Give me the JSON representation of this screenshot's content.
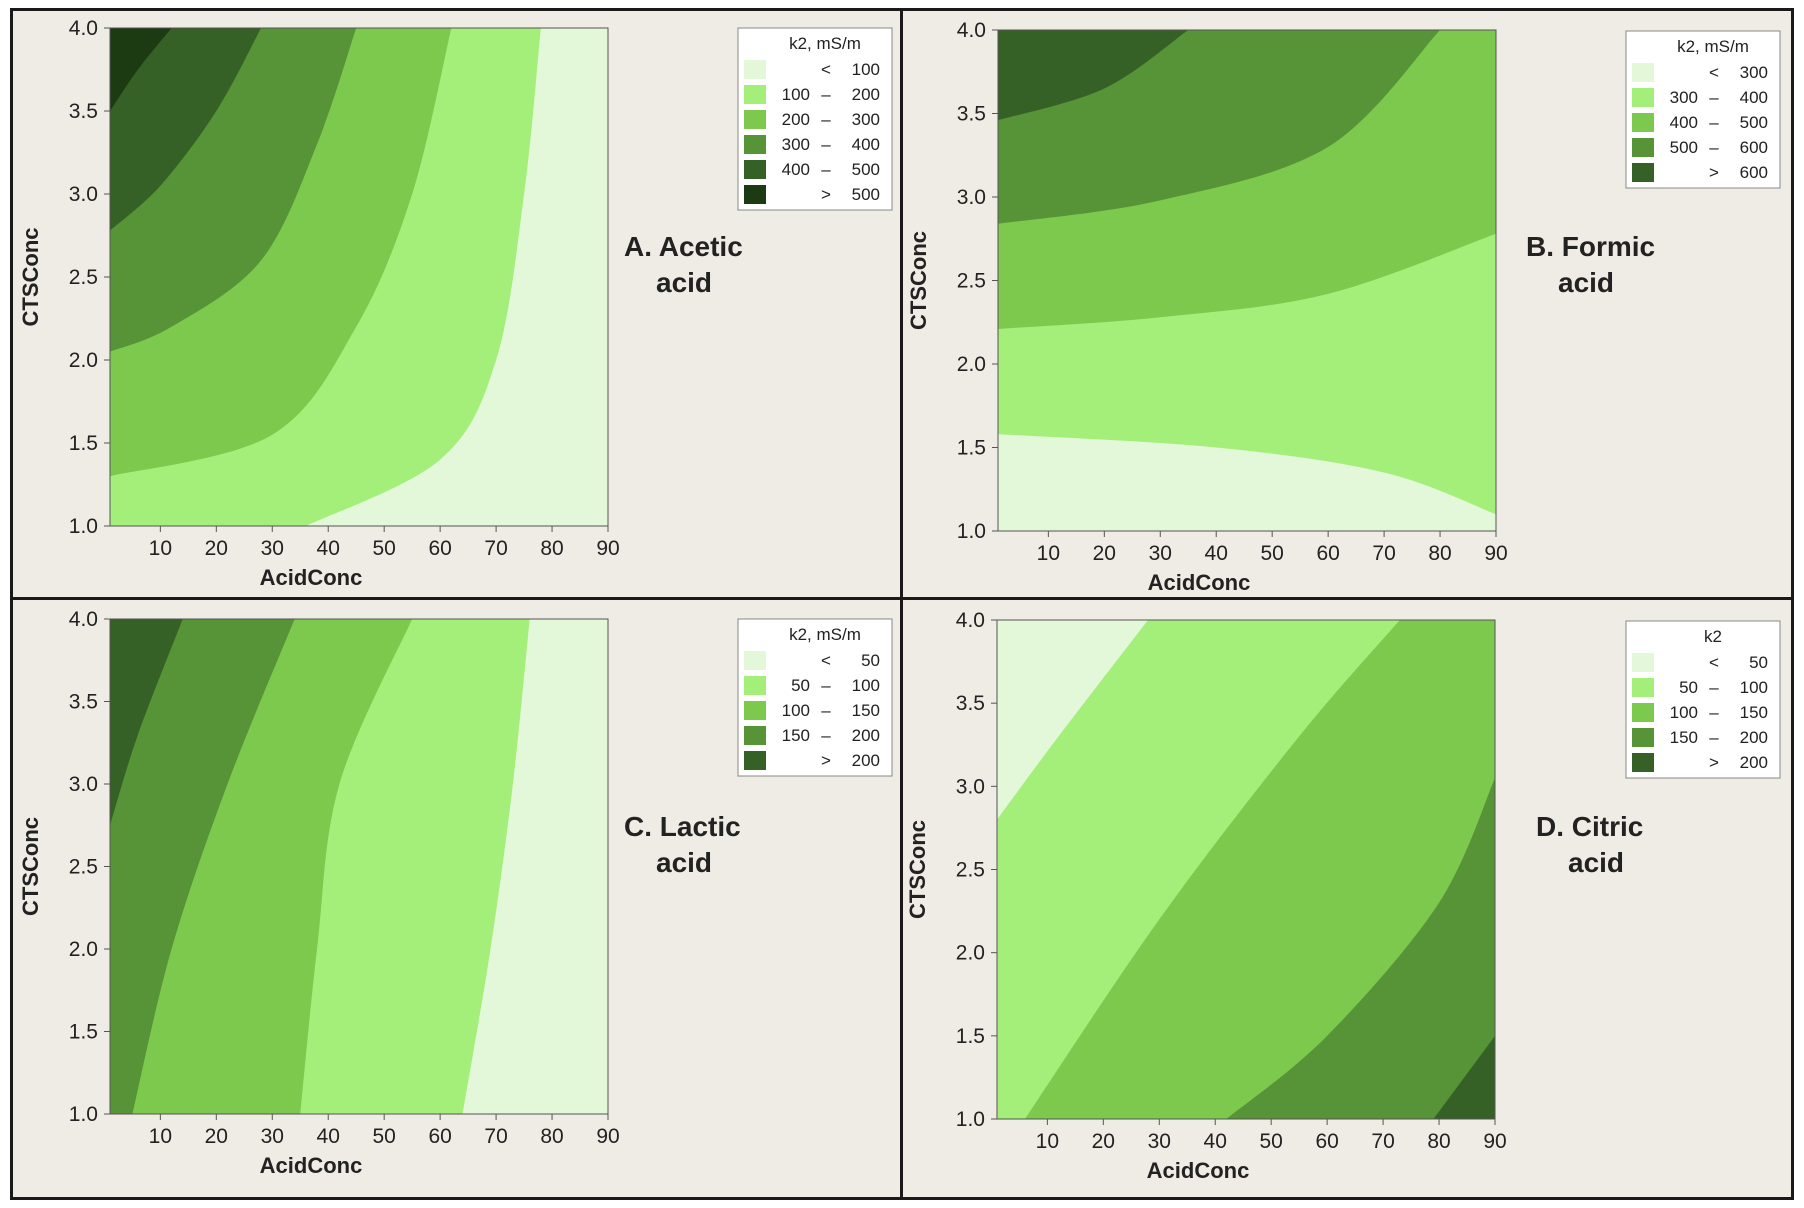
{
  "figure": {
    "description_colors": {
      "frame": "#1a1a1a",
      "background": "#efebe5"
    }
  },
  "chart_data": [
    {
      "type": "contour",
      "title": [
        "A. Acetic",
        "acid"
      ],
      "xlabel": "AcidConc",
      "ylabel": "CTSConc",
      "xlim": [
        1,
        90
      ],
      "ylim": [
        1.0,
        4.0
      ],
      "xticks": [
        "10",
        "20",
        "30",
        "40",
        "50",
        "60",
        "70",
        "80",
        "90"
      ],
      "yticks": [
        "1.0",
        "1.5",
        "2.0",
        "2.5",
        "3.0",
        "3.5",
        "4.0"
      ],
      "legend_title": "k2, mS/m",
      "legend_position": "top-right",
      "levels": [
        {
          "op": "<",
          "lo": "",
          "hi": "100",
          "color": "#e3f7d9"
        },
        {
          "op": "–",
          "lo": "100",
          "hi": "200",
          "color": "#a3ef7a"
        },
        {
          "op": "–",
          "lo": "200",
          "hi": "300",
          "color": "#7cc94e"
        },
        {
          "op": "–",
          "lo": "300",
          "hi": "400",
          "color": "#579337"
        },
        {
          "op": "–",
          "lo": "400",
          "hi": "500",
          "color": "#366126"
        },
        {
          "op": ">",
          "lo": "",
          "hi": "500",
          "color": "#1c3b13"
        }
      ],
      "boundaries": [
        [
          [
            78,
            4.0
          ],
          [
            75,
            3.0
          ],
          [
            70,
            2.0
          ],
          [
            60,
            1.4
          ],
          [
            36,
            1.0
          ]
        ],
        [
          [
            62,
            4.0
          ],
          [
            55,
            3.0
          ],
          [
            45,
            2.2
          ],
          [
            30,
            1.55
          ],
          [
            1,
            1.3
          ]
        ],
        [
          [
            45,
            4.0
          ],
          [
            38,
            3.3
          ],
          [
            28,
            2.6
          ],
          [
            12,
            2.2
          ],
          [
            1,
            2.05
          ]
        ],
        [
          [
            28,
            4.0
          ],
          [
            20,
            3.5
          ],
          [
            10,
            3.05
          ],
          [
            1,
            2.78
          ]
        ],
        [
          [
            12,
            4.0
          ],
          [
            6,
            3.75
          ],
          [
            1,
            3.5
          ]
        ]
      ]
    },
    {
      "type": "contour",
      "title": [
        "B. Formic",
        "acid"
      ],
      "xlabel": "AcidConc",
      "ylabel": "CTSConc",
      "xlim": [
        1,
        90
      ],
      "ylim": [
        1.0,
        4.0
      ],
      "xticks": [
        "10",
        "20",
        "30",
        "40",
        "50",
        "60",
        "70",
        "80",
        "90"
      ],
      "yticks": [
        "1.0",
        "1.5",
        "2.0",
        "2.5",
        "3.0",
        "3.5",
        "4.0"
      ],
      "legend_title": "k2, mS/m",
      "legend_position": "top-right",
      "levels": [
        {
          "op": "<",
          "lo": "",
          "hi": "300",
          "color": "#e3f7d9"
        },
        {
          "op": "–",
          "lo": "300",
          "hi": "400",
          "color": "#a3ef7a"
        },
        {
          "op": "–",
          "lo": "400",
          "hi": "500",
          "color": "#7cc94e"
        },
        {
          "op": "–",
          "lo": "500",
          "hi": "600",
          "color": "#579337"
        },
        {
          "op": ">",
          "lo": "",
          "hi": "600",
          "color": "#366126"
        }
      ],
      "boundaries": [
        [
          [
            1,
            1.58
          ],
          [
            40,
            1.5
          ],
          [
            70,
            1.35
          ],
          [
            90,
            1.1
          ]
        ],
        [
          [
            1,
            2.21
          ],
          [
            30,
            2.28
          ],
          [
            60,
            2.42
          ],
          [
            90,
            2.78
          ]
        ],
        [
          [
            1,
            2.84
          ],
          [
            30,
            2.98
          ],
          [
            60,
            3.3
          ],
          [
            80,
            4.0
          ]
        ],
        [
          [
            1,
            3.46
          ],
          [
            20,
            3.65
          ],
          [
            35,
            4.0
          ]
        ]
      ]
    },
    {
      "type": "contour",
      "title": [
        "C. Lactic",
        "acid"
      ],
      "xlabel": "AcidConc",
      "ylabel": "CTSConc",
      "xlim": [
        1,
        90
      ],
      "ylim": [
        1.0,
        4.0
      ],
      "xticks": [
        "10",
        "20",
        "30",
        "40",
        "50",
        "60",
        "70",
        "80",
        "90"
      ],
      "yticks": [
        "1.0",
        "1.5",
        "2.0",
        "2.5",
        "3.0",
        "3.5",
        "4.0"
      ],
      "legend_title": "k2, mS/m",
      "legend_position": "top-right",
      "levels": [
        {
          "op": "<",
          "lo": "",
          "hi": "50",
          "color": "#e3f7d9"
        },
        {
          "op": "–",
          "lo": "50",
          "hi": "100",
          "color": "#a3ef7a"
        },
        {
          "op": "–",
          "lo": "100",
          "hi": "150",
          "color": "#7cc94e"
        },
        {
          "op": "–",
          "lo": "150",
          "hi": "200",
          "color": "#579337"
        },
        {
          "op": ">",
          "lo": "",
          "hi": "200",
          "color": "#366126"
        }
      ],
      "boundaries": [
        [
          [
            64,
            1.0
          ],
          [
            69,
            2.0
          ],
          [
            73,
            3.0
          ],
          [
            76,
            4.0
          ]
        ],
        [
          [
            35,
            1.0
          ],
          [
            38,
            2.0
          ],
          [
            42,
            3.0
          ],
          [
            55,
            4.0
          ]
        ],
        [
          [
            5,
            1.0
          ],
          [
            12,
            2.0
          ],
          [
            22,
            3.0
          ],
          [
            34,
            4.0
          ]
        ],
        [
          [
            1,
            2.75
          ],
          [
            6,
            3.3
          ],
          [
            14,
            4.0
          ]
        ]
      ]
    },
    {
      "type": "contour",
      "title": [
        "D. Citric",
        "acid"
      ],
      "xlabel": "AcidConc",
      "ylabel": "CTSConc",
      "xlim": [
        1,
        90
      ],
      "ylim": [
        1.0,
        4.0
      ],
      "xticks": [
        "10",
        "20",
        "30",
        "40",
        "50",
        "60",
        "70",
        "80",
        "90"
      ],
      "yticks": [
        "1.0",
        "1.5",
        "2.0",
        "2.5",
        "3.0",
        "3.5",
        "4.0"
      ],
      "legend_title": "k2",
      "legend_position": "top-right",
      "levels": [
        {
          "op": "<",
          "lo": "",
          "hi": "50",
          "color": "#e3f7d9"
        },
        {
          "op": "–",
          "lo": "50",
          "hi": "100",
          "color": "#a3ef7a"
        },
        {
          "op": "–",
          "lo": "100",
          "hi": "150",
          "color": "#7cc94e"
        },
        {
          "op": "–",
          "lo": "150",
          "hi": "200",
          "color": "#579337"
        },
        {
          "op": ">",
          "lo": "",
          "hi": "200",
          "color": "#366126"
        }
      ],
      "boundaries": [
        [
          [
            1,
            2.8
          ],
          [
            12,
            3.3
          ],
          [
            28,
            4.0
          ]
        ],
        [
          [
            6,
            1.0
          ],
          [
            30,
            2.2
          ],
          [
            55,
            3.3
          ],
          [
            73,
            4.0
          ]
        ],
        [
          [
            42,
            1.0
          ],
          [
            60,
            1.5
          ],
          [
            80,
            2.3
          ],
          [
            90,
            3.05
          ]
        ],
        [
          [
            79,
            1.0
          ],
          [
            90,
            1.5
          ]
        ]
      ]
    }
  ]
}
